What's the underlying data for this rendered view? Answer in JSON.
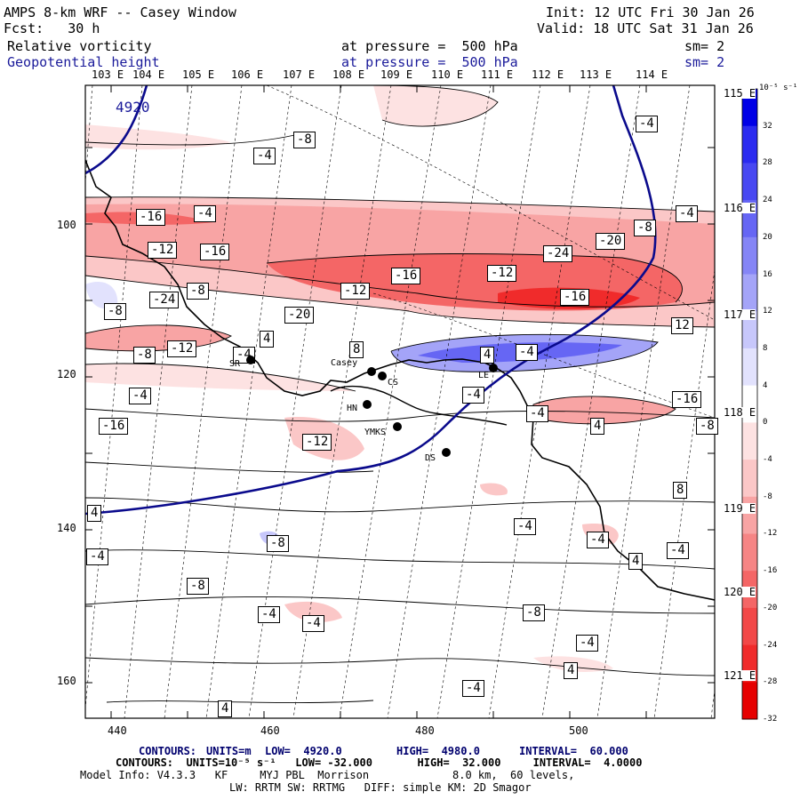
{
  "header": {
    "model_title": "AMPS 8-km WRF -- Casey Window",
    "init": "Init: 12 UTC Fri 30 Jan 26",
    "fcst": "Fcst:   30 h",
    "valid": "Valid: 18 UTC Sat 31 Jan 26",
    "field1": "Relative vorticity",
    "field1_level": "at pressure =  500 hPa",
    "field1_sm": "sm= 2",
    "field2": "Geopotential height",
    "field2_level": "at pressure =  500 hPa",
    "field2_sm": "sm= 2"
  },
  "map": {
    "top_lon_labels": [
      "103 E",
      "104 E",
      "105 E",
      "106 E",
      "107 E",
      "108 E",
      "109 E",
      "110 E",
      "111 E",
      "112 E",
      "113 E",
      "114 E"
    ],
    "right_lat_labels": [
      "115 E",
      "116 E",
      "117 E",
      "118 E",
      "119 E",
      "120 E",
      "121 E"
    ],
    "x_ticks": [
      "440",
      "460",
      "480",
      "500"
    ],
    "y_ticks": [
      "100",
      "120",
      "140",
      "160"
    ],
    "stations": [
      {
        "name": "SR",
        "color": "#000000"
      },
      {
        "name": "Casey",
        "color": "#000000"
      },
      {
        "name": "CS",
        "color": "#000000"
      },
      {
        "name": "HN",
        "color": "#000000"
      },
      {
        "name": "YMKS",
        "color": "#000000"
      },
      {
        "name": "DS",
        "color": "#000000"
      },
      {
        "name": "LE",
        "color": "#000000"
      }
    ],
    "height_contour_label": "4920",
    "vort_labels": [
      "-8",
      "-4",
      "-4",
      "-16",
      "-4",
      "-8",
      "-4",
      "-12",
      "-16",
      "-24",
      "-20",
      "-16",
      "-12",
      "-8",
      "-12",
      "-16",
      "-8",
      "-20",
      "-24",
      "8",
      "-8",
      "4",
      "-4",
      "-12",
      "-4",
      "4",
      "-4",
      "12",
      "-16",
      "-16",
      "-4",
      "-4",
      "4",
      "-8",
      "-12",
      "-4",
      "-8",
      "-4",
      "8",
      "-4",
      "4",
      "-4",
      "-8",
      "-4",
      "-4",
      "4",
      "-4",
      "-8",
      "4",
      "-4",
      "4",
      "-4",
      "4",
      "-4",
      "-4",
      "-4"
    ]
  },
  "colorbar": {
    "unit": "10⁻⁵ s⁻¹",
    "labels": [
      "32",
      "28",
      "24",
      "20",
      "16",
      "12",
      "8",
      "4",
      "0",
      "-4",
      "-8",
      "-12",
      "-16",
      "-20",
      "-24",
      "-28",
      "-32"
    ],
    "colors": [
      "#0000e6",
      "#2b2bf0",
      "#4848f2",
      "#6666f4",
      "#8585f6",
      "#a4a4f8",
      "#c7c7fb",
      "#e2e2fd",
      "#ffffff",
      "#fde2e2",
      "#fbc7c7",
      "#f8a4a4",
      "#f68585",
      "#f46666",
      "#f24848",
      "#f02b2b",
      "#e60000"
    ]
  },
  "footer": {
    "contours1_label": "CONTOURS:",
    "contours1_units": "UNITS=m",
    "contours1_low": "LOW=  4920.0",
    "contours1_high": "HIGH=  4980.0",
    "contours1_interval": "INTERVAL=  60.000",
    "contours2": "CONTOURS:  UNITS=10⁻⁵ s⁻¹   LOW= -32.000       HIGH=  32.000     INTERVAL=  4.0000",
    "model_info": "Model Info: V4.3.3   KF     MYJ PBL  Morrison             8.0 km,  60 levels,",
    "physics": "LW: RRTM SW: RRTMG   DIFF: simple KM: 2D Smagor"
  }
}
